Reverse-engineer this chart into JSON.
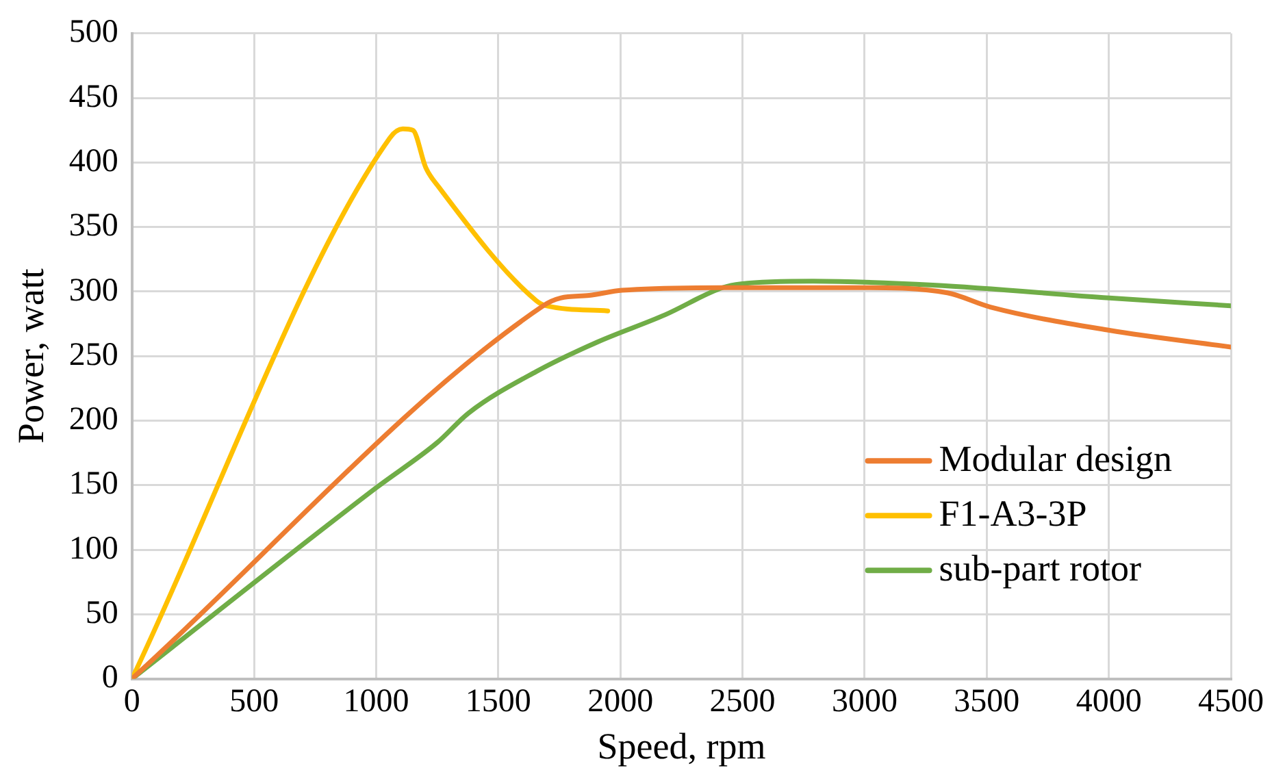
{
  "chart_data": {
    "type": "line",
    "xlabel": "Speed, rpm",
    "ylabel": "Power, watt",
    "xlim": [
      0,
      4500
    ],
    "xticks": [
      0,
      500,
      1000,
      1500,
      2000,
      2500,
      3000,
      3500,
      4000,
      4500
    ],
    "ylim": [
      0,
      500
    ],
    "yticks": [
      0,
      50,
      100,
      150,
      200,
      250,
      300,
      350,
      400,
      450,
      500
    ],
    "grid": true,
    "legend": "right",
    "marker": "none",
    "line_style": "solid",
    "series": [
      {
        "name": "Modular design",
        "color": "#ed7d31",
        "x": [
          0,
          1684,
          1755,
          1872,
          2007,
          2418,
          3000,
          3339,
          3515,
          4002,
          4500
        ],
        "values": [
          0,
          289,
          295,
          297,
          301,
          303,
          303,
          299,
          288,
          270,
          257
        ]
      },
      {
        "name": "F1-A3-3P",
        "color": "#ffc000",
        "x": [
          0,
          1056,
          1109,
          1150,
          1203,
          1256,
          1655,
          1696,
          1948
        ],
        "values": [
          0,
          419,
          426,
          425,
          396,
          381,
          293,
          289,
          285
        ]
      },
      {
        "name": "sub-part rotor",
        "color": "#70ad47",
        "x": [
          0,
          1000,
          1250,
          1379,
          1655,
          1907,
          2183,
          2418,
          2494,
          2788,
          3280,
          4002,
          4500
        ],
        "values": [
          0,
          148,
          183,
          206,
          238,
          261,
          282,
          303,
          306,
          308,
          305,
          295,
          289
        ]
      }
    ]
  }
}
